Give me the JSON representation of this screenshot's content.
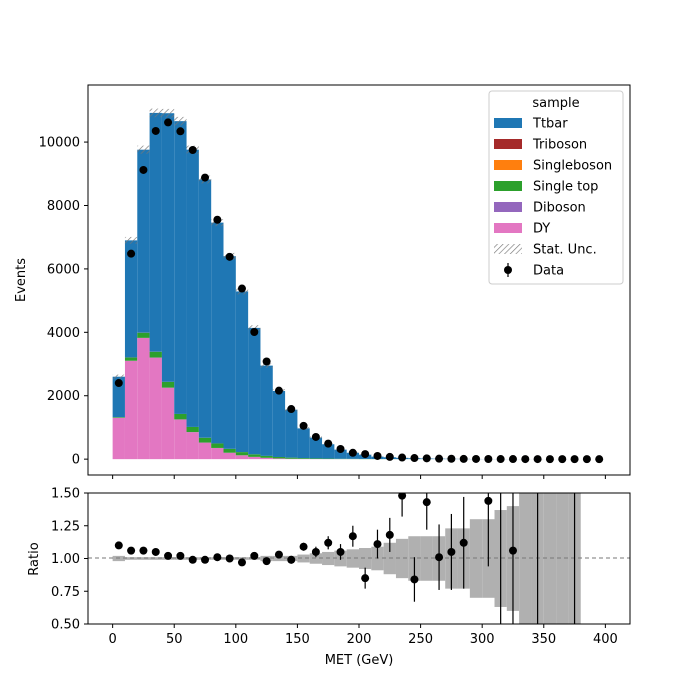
{
  "chart_data": [
    {
      "type": "bar",
      "stacked": true,
      "ylabel": "Events",
      "xlim": [
        -20,
        420
      ],
      "ylim": [
        -500,
        11800
      ],
      "yticks": [
        0,
        2000,
        4000,
        6000,
        8000,
        10000
      ],
      "bin_width": 10,
      "bin_centers": [
        5,
        15,
        25,
        35,
        45,
        55,
        65,
        75,
        85,
        95,
        105,
        115,
        125,
        135,
        145,
        155,
        165,
        175,
        185,
        195,
        205,
        215,
        225,
        235,
        245,
        255,
        265,
        275,
        285,
        295,
        305,
        315,
        325,
        335,
        345,
        355,
        365,
        375,
        385,
        395
      ],
      "series": [
        {
          "name": "DY",
          "color": "#e377c2",
          "values": [
            1300,
            3100,
            3820,
            3200,
            2250,
            1250,
            850,
            520,
            350,
            200,
            120,
            70,
            40,
            20,
            10,
            5,
            3,
            2,
            1,
            1,
            0,
            0,
            0,
            0,
            0,
            0,
            0,
            0,
            0,
            0,
            0,
            0,
            0,
            0,
            0,
            0,
            0,
            0,
            0,
            0
          ]
        },
        {
          "name": "Diboson",
          "color": "#9467bd",
          "values": [
            2,
            4,
            5,
            5,
            5,
            4,
            4,
            3,
            3,
            3,
            2,
            2,
            2,
            2,
            2,
            1,
            1,
            1,
            1,
            1,
            0,
            0,
            0,
            0,
            0,
            0,
            0,
            0,
            0,
            0,
            0,
            0,
            0,
            0,
            0,
            0,
            0,
            0,
            0,
            0
          ]
        },
        {
          "name": "Single top",
          "color": "#2ca02c",
          "values": [
            20,
            100,
            160,
            180,
            180,
            170,
            160,
            150,
            140,
            120,
            100,
            80,
            60,
            45,
            35,
            25,
            20,
            15,
            10,
            8,
            6,
            4,
            3,
            2,
            1,
            1,
            1,
            0,
            0,
            0,
            0,
            0,
            0,
            0,
            0,
            0,
            0,
            0,
            0,
            0
          ]
        },
        {
          "name": "Singleboson",
          "color": "#ff7f0e",
          "values": [
            2,
            3,
            3,
            3,
            3,
            2,
            2,
            2,
            2,
            2,
            1,
            1,
            1,
            1,
            1,
            1,
            0,
            0,
            0,
            0,
            0,
            0,
            0,
            0,
            0,
            0,
            0,
            0,
            0,
            0,
            0,
            0,
            0,
            0,
            0,
            0,
            0,
            0,
            0,
            0
          ]
        },
        {
          "name": "Triboson",
          "color": "#a52a2a",
          "values": [
            0,
            0,
            0,
            0,
            0,
            0,
            0,
            0,
            0,
            0,
            0,
            0,
            0,
            0,
            0,
            0,
            0,
            0,
            0,
            0,
            0,
            0,
            0,
            0,
            0,
            0,
            0,
            0,
            0,
            0,
            0,
            0,
            0,
            0,
            0,
            0,
            0,
            0,
            0,
            0
          ]
        },
        {
          "name": "Ttbar",
          "color": "#1f77b4",
          "values": [
            1276,
            3693,
            5772,
            7532,
            8472,
            9234,
            8744,
            8145,
            6965,
            6075,
            5067,
            3987,
            2847,
            2082,
            1512,
            939,
            656,
            452,
            288,
            191,
            134,
            76,
            57,
            38,
            29,
            19,
            14,
            10,
            7,
            5,
            3,
            3,
            2,
            1,
            1,
            1,
            1,
            0,
            0,
            0
          ]
        }
      ],
      "stat_unc_label": "Stat. Unc.",
      "data_label": "Data",
      "data": [
        2400,
        6480,
        9120,
        10350,
        10620,
        10340,
        9750,
        8880,
        7550,
        6380,
        5380,
        4010,
        3080,
        2160,
        1580,
        1050,
        700,
        490,
        320,
        200,
        160,
        100,
        70,
        50,
        35,
        25,
        15,
        12,
        8,
        6,
        5,
        4,
        3,
        2,
        2,
        1,
        1,
        1,
        1,
        0
      ],
      "legend": {
        "title": "sample",
        "location": "top-right",
        "entries": [
          "Ttbar",
          "Triboson",
          "Singleboson",
          "Single top",
          "Diboson",
          "DY",
          "Stat. Unc.",
          "Data"
        ]
      }
    },
    {
      "type": "scatter",
      "xlabel": "MET (GeV)",
      "ylabel": "Ratio",
      "xlim": [
        -20,
        420
      ],
      "ylim": [
        0.5,
        1.5
      ],
      "xticks": [
        0,
        50,
        100,
        150,
        200,
        250,
        300,
        350,
        400
      ],
      "yticks": [
        0.5,
        0.75,
        1.0,
        1.25,
        1.5
      ],
      "reference_line": 1.0,
      "x": [
        5,
        15,
        25,
        35,
        45,
        55,
        65,
        75,
        85,
        95,
        105,
        115,
        125,
        135,
        145,
        155,
        165,
        175,
        185,
        195,
        205,
        215,
        225,
        235,
        245,
        255,
        265,
        275,
        285,
        295,
        305,
        315,
        325,
        335,
        345,
        355,
        365,
        375
      ],
      "ratio": [
        1.1,
        1.06,
        1.06,
        1.05,
        1.02,
        1.02,
        0.99,
        0.99,
        1.01,
        1.0,
        0.97,
        1.02,
        0.98,
        1.03,
        0.99,
        1.09,
        1.05,
        1.12,
        1.05,
        1.17,
        0.85,
        1.11,
        1.18,
        1.48,
        0.84,
        1.43,
        1.01,
        1.05,
        1.12,
        null,
        1.44,
        null,
        1.06,
        null,
        null,
        null,
        null,
        null
      ],
      "ratio_err": [
        0.02,
        0.02,
        0.01,
        0.01,
        0.01,
        0.01,
        0.01,
        0.01,
        0.01,
        0.01,
        0.01,
        0.02,
        0.02,
        0.02,
        0.03,
        0.03,
        0.04,
        0.05,
        0.06,
        0.08,
        0.08,
        0.11,
        0.13,
        0.16,
        0.17,
        0.21,
        0.25,
        0.29,
        0.35,
        null,
        0.5,
        null,
        0.6,
        null,
        null,
        null,
        null,
        null
      ],
      "band": [
        0.02,
        0.01,
        0.01,
        0.01,
        0.01,
        0.01,
        0.01,
        0.01,
        0.01,
        0.01,
        0.01,
        0.01,
        0.02,
        0.02,
        0.02,
        0.03,
        0.04,
        0.05,
        0.06,
        0.07,
        0.08,
        0.09,
        0.12,
        0.15,
        0.17,
        0.17,
        0.17,
        0.23,
        0.23,
        0.3,
        0.3,
        0.37,
        0.4,
        0.5,
        0.6,
        0.6,
        0.6,
        0.6
      ],
      "data_points_beyond_range_errbars": [
        315,
        345,
        375
      ]
    }
  ]
}
